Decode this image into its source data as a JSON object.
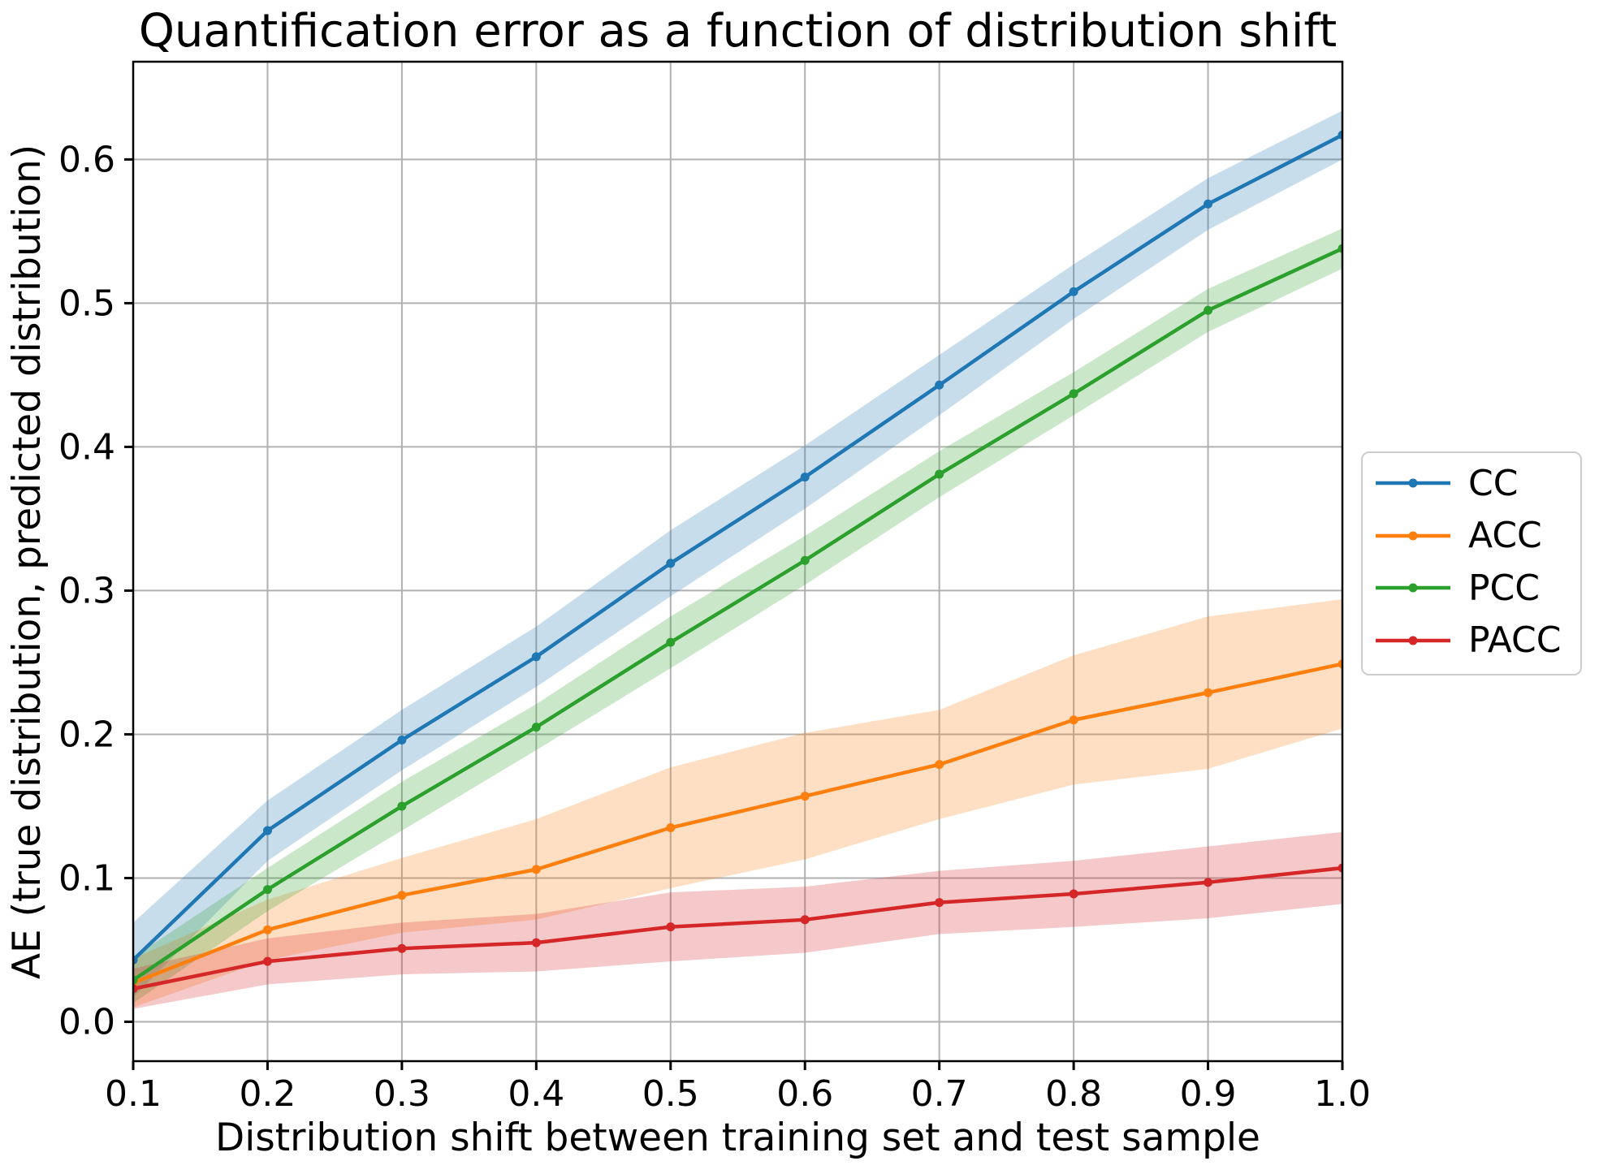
{
  "chart_data": {
    "type": "line",
    "title": "Quantification error as a function of distribution shift",
    "xlabel": "Distribution shift between training set and test sample",
    "ylabel": "AE (true distribution, predicted distribution)",
    "x": [
      0.1,
      0.2,
      0.3,
      0.4,
      0.5,
      0.6,
      0.7,
      0.8,
      0.9,
      1.0
    ],
    "xlim": [
      0.1,
      1.0
    ],
    "ylim": [
      -0.0274,
      0.668
    ],
    "xticks": [
      0.1,
      0.2,
      0.3,
      0.4,
      0.5,
      0.6,
      0.7,
      0.8,
      0.9,
      1.0
    ],
    "yticks": [
      0.0,
      0.1,
      0.2,
      0.3,
      0.4,
      0.5,
      0.6
    ],
    "grid": true,
    "band_alpha": 0.25,
    "legend_position": "center right, outside axes",
    "series": [
      {
        "name": "CC",
        "color": "#1f77b4",
        "values": [
          0.043,
          0.133,
          0.196,
          0.254,
          0.319,
          0.379,
          0.443,
          0.508,
          0.569,
          0.617
        ],
        "band_halfwidth": [
          0.026,
          0.021,
          0.021,
          0.021,
          0.023,
          0.022,
          0.021,
          0.019,
          0.018,
          0.017
        ]
      },
      {
        "name": "ACC",
        "color": "#ff7f0e",
        "values": [
          0.027,
          0.064,
          0.088,
          0.106,
          0.135,
          0.157,
          0.179,
          0.21,
          0.229,
          0.249
        ],
        "band_halfwidth": [
          0.017,
          0.021,
          0.026,
          0.035,
          0.042,
          0.044,
          0.038,
          0.045,
          0.053,
          0.045
        ]
      },
      {
        "name": "PCC",
        "color": "#2ca02c",
        "values": [
          0.029,
          0.092,
          0.15,
          0.205,
          0.264,
          0.321,
          0.381,
          0.437,
          0.495,
          0.538
        ],
        "band_halfwidth": [
          0.016,
          0.015,
          0.017,
          0.016,
          0.018,
          0.017,
          0.016,
          0.015,
          0.015,
          0.014
        ]
      },
      {
        "name": "PACC",
        "color": "#d62728",
        "values": [
          0.023,
          0.042,
          0.051,
          0.055,
          0.066,
          0.071,
          0.083,
          0.089,
          0.097,
          0.107
        ],
        "band_halfwidth": [
          0.014,
          0.016,
          0.018,
          0.02,
          0.024,
          0.023,
          0.022,
          0.023,
          0.025,
          0.025
        ]
      }
    ]
  },
  "styles": {
    "grid_color": "#b0b0b0",
    "spine_color": "#000000",
    "legend_border_color": "#cccccc",
    "text_color": "#000000",
    "background": "#ffffff"
  }
}
